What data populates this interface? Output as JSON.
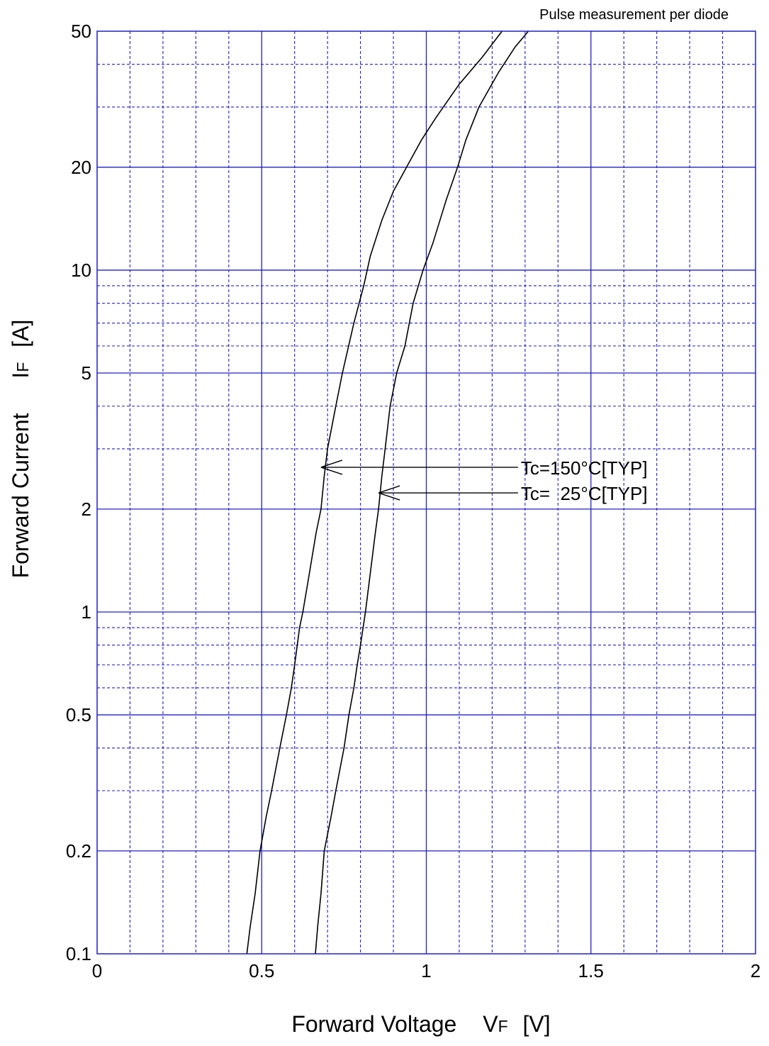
{
  "chart_data": {
    "type": "line",
    "title": "Pulse measurement per diode",
    "xlabel": "Forward Voltage",
    "xlabel_symbol": "V",
    "xlabel_subscript": "F",
    "xlabel_unit": "[V]",
    "ylabel": "Forward Current",
    "ylabel_symbol": "I",
    "ylabel_subscript": "F",
    "ylabel_unit": "[A]",
    "xlim": [
      0,
      2
    ],
    "ylim": [
      0.1,
      50
    ],
    "yscale": "log",
    "grid": true,
    "x_ticks": [
      {
        "value": 0,
        "label": "0"
      },
      {
        "value": 0.5,
        "label": "0.5"
      },
      {
        "value": 1,
        "label": "1"
      },
      {
        "value": 1.5,
        "label": "1.5"
      },
      {
        "value": 2,
        "label": "2"
      }
    ],
    "y_ticks": [
      {
        "value": 0.1,
        "label": "0.1"
      },
      {
        "value": 0.2,
        "label": "0.2"
      },
      {
        "value": 0.5,
        "label": "0.5"
      },
      {
        "value": 1,
        "label": "1"
      },
      {
        "value": 2,
        "label": "2"
      },
      {
        "value": 5,
        "label": "5"
      },
      {
        "value": 10,
        "label": "10"
      },
      {
        "value": 20,
        "label": "20"
      },
      {
        "value": 50,
        "label": "50"
      }
    ],
    "series": [
      {
        "name": "Tc=150°C[TYP]",
        "points": [
          [
            0.455,
            0.1
          ],
          [
            0.465,
            0.12
          ],
          [
            0.48,
            0.15
          ],
          [
            0.495,
            0.2
          ],
          [
            0.513,
            0.25
          ],
          [
            0.53,
            0.3
          ],
          [
            0.555,
            0.4
          ],
          [
            0.575,
            0.5
          ],
          [
            0.59,
            0.6
          ],
          [
            0.6,
            0.7
          ],
          [
            0.615,
            0.9
          ],
          [
            0.625,
            1.0
          ],
          [
            0.645,
            1.3
          ],
          [
            0.665,
            1.7
          ],
          [
            0.68,
            2.0
          ],
          [
            0.69,
            2.5
          ],
          [
            0.7,
            3.0
          ],
          [
            0.725,
            4.0
          ],
          [
            0.745,
            5.0
          ],
          [
            0.78,
            7.0
          ],
          [
            0.81,
            9.0
          ],
          [
            0.83,
            11.0
          ],
          [
            0.865,
            14.0
          ],
          [
            0.9,
            17.0
          ],
          [
            0.94,
            20.0
          ],
          [
            0.985,
            24.0
          ],
          [
            1.03,
            28.0
          ],
          [
            1.1,
            35.0
          ],
          [
            1.17,
            42.0
          ],
          [
            1.23,
            50.0
          ]
        ]
      },
      {
        "name": "Tc=  25°C[TYP]",
        "points": [
          [
            0.663,
            0.1
          ],
          [
            0.67,
            0.12
          ],
          [
            0.68,
            0.15
          ],
          [
            0.69,
            0.2
          ],
          [
            0.71,
            0.25
          ],
          [
            0.725,
            0.3
          ],
          [
            0.75,
            0.4
          ],
          [
            0.765,
            0.5
          ],
          [
            0.78,
            0.6
          ],
          [
            0.79,
            0.7
          ],
          [
            0.8,
            0.8
          ],
          [
            0.815,
            1.0
          ],
          [
            0.83,
            1.3
          ],
          [
            0.845,
            1.7
          ],
          [
            0.855,
            2.0
          ],
          [
            0.865,
            2.5
          ],
          [
            0.875,
            3.0
          ],
          [
            0.89,
            4.0
          ],
          [
            0.91,
            5.0
          ],
          [
            0.935,
            6.0
          ],
          [
            0.96,
            8.0
          ],
          [
            0.99,
            10.0
          ],
          [
            1.02,
            12.0
          ],
          [
            1.06,
            16.0
          ],
          [
            1.095,
            20.0
          ],
          [
            1.12,
            24.0
          ],
          [
            1.16,
            30.0
          ],
          [
            1.22,
            38.0
          ],
          [
            1.27,
            45.0
          ],
          [
            1.31,
            50.0
          ]
        ]
      }
    ],
    "annotations": [
      {
        "text": "Tc=150°C[TYP]",
        "target": [
          0.68,
          2.65
        ],
        "text_at": [
          1.3,
          2.65
        ]
      },
      {
        "text": "Tc=  25°C[TYP]",
        "target": [
          0.855,
          2.23
        ],
        "text_at": [
          1.3,
          2.23
        ]
      }
    ]
  }
}
